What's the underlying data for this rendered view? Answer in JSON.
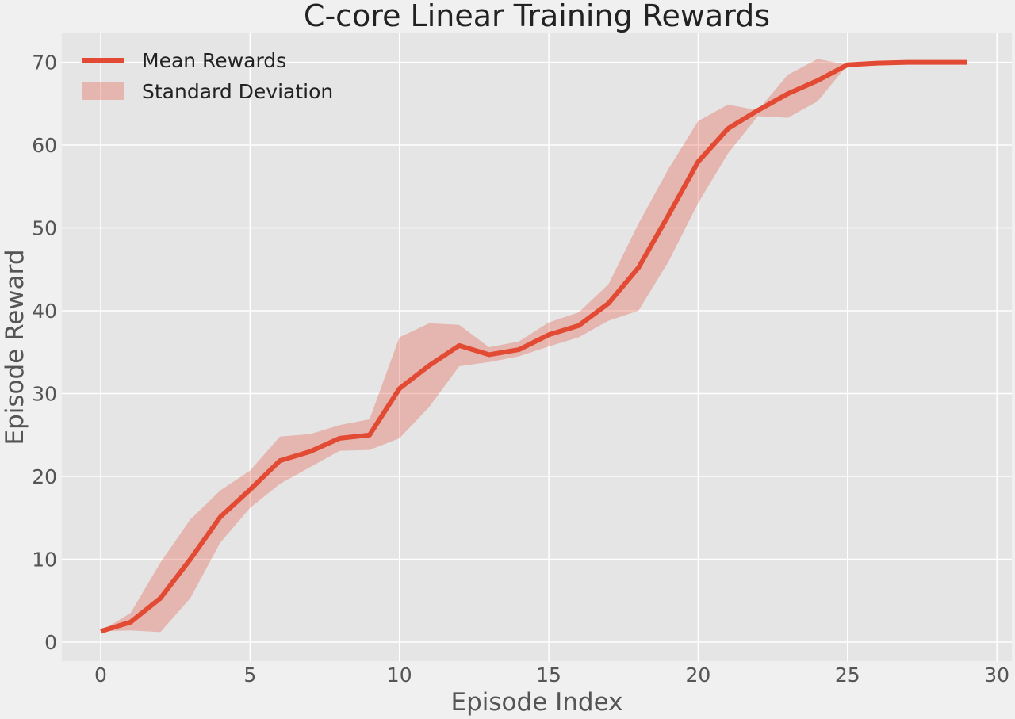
{
  "chart_data": {
    "type": "line",
    "title": "C-core Linear Training Rewards",
    "xlabel": "Episode Index",
    "ylabel": "Episode Reward",
    "xlim": [
      -1.3,
      30.5
    ],
    "ylim": [
      -2.3,
      73.5
    ],
    "xticks": [
      0,
      5,
      10,
      15,
      20,
      25,
      30
    ],
    "yticks": [
      0,
      10,
      20,
      30,
      40,
      50,
      60,
      70
    ],
    "grid": true,
    "legend_position": "top-left",
    "x": [
      0,
      1,
      2,
      3,
      4,
      5,
      6,
      7,
      8,
      9,
      10,
      11,
      12,
      13,
      14,
      15,
      16,
      17,
      18,
      19,
      20,
      21,
      22,
      23,
      24,
      25,
      26,
      27,
      28,
      29
    ],
    "series": [
      {
        "name": "Mean Rewards",
        "kind": "line",
        "color": "#e24a33",
        "values": [
          1.3,
          2.4,
          5.3,
          10.0,
          15.1,
          18.4,
          21.9,
          23.0,
          24.6,
          25.0,
          30.6,
          33.4,
          35.8,
          34.7,
          35.3,
          37.1,
          38.2,
          40.9,
          45.2,
          51.5,
          58.0,
          62.0,
          64.2,
          66.2,
          67.8,
          69.7,
          69.9,
          70.0,
          70.0,
          70.0
        ]
      },
      {
        "name": "Standard Deviation",
        "kind": "band",
        "color": "#e24a33",
        "opacity": 0.3,
        "lower": [
          1.3,
          1.4,
          1.2,
          5.3,
          12.0,
          16.2,
          19.1,
          21.1,
          23.1,
          23.2,
          24.6,
          28.4,
          33.3,
          33.8,
          34.5,
          35.7,
          36.8,
          38.8,
          40.0,
          45.9,
          53.0,
          59.0,
          63.5,
          63.3,
          65.3,
          69.7,
          69.9,
          70.0,
          70.0,
          70.0
        ],
        "upper": [
          1.3,
          3.5,
          9.6,
          14.8,
          18.3,
          20.7,
          24.8,
          25.1,
          26.2,
          26.9,
          36.8,
          38.5,
          38.3,
          35.6,
          36.3,
          38.6,
          39.8,
          43.2,
          50.5,
          57.1,
          62.9,
          64.9,
          64.2,
          68.5,
          70.4,
          69.7,
          69.9,
          70.0,
          70.0,
          70.0
        ]
      }
    ]
  }
}
